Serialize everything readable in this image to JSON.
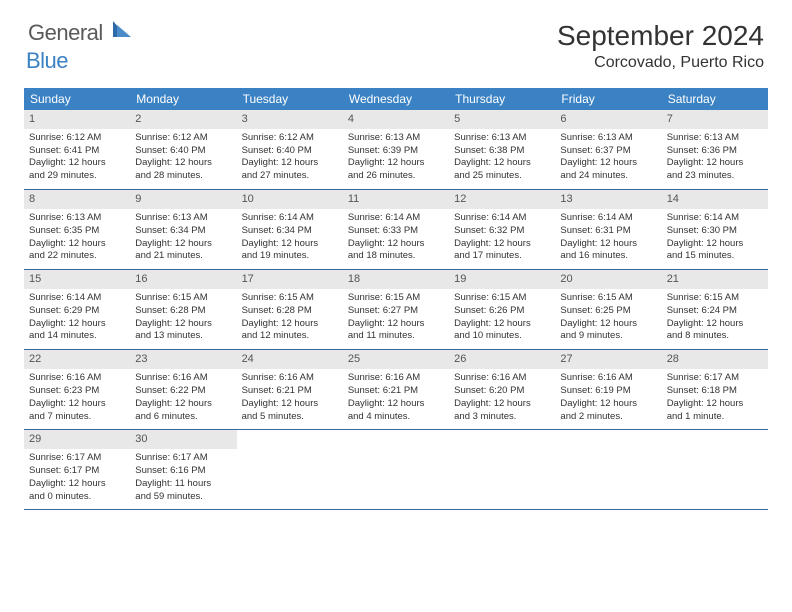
{
  "brand": {
    "part1": "General",
    "part2": "Blue"
  },
  "title": "September 2024",
  "location": "Corcovado, Puerto Rico",
  "colors": {
    "header_bg": "#3b82c4",
    "header_text": "#ffffff",
    "daynum_bg": "#e8e8e8",
    "row_border": "#3b6a9a",
    "text": "#333333"
  },
  "fonts": {
    "title_size": 28,
    "location_size": 16,
    "dayheader_size": 12,
    "daynum_size": 11,
    "body_size": 9.5
  },
  "day_names": [
    "Sunday",
    "Monday",
    "Tuesday",
    "Wednesday",
    "Thursday",
    "Friday",
    "Saturday"
  ],
  "weeks": [
    [
      {
        "n": "1",
        "sunrise": "Sunrise: 6:12 AM",
        "sunset": "Sunset: 6:41 PM",
        "dl1": "Daylight: 12 hours",
        "dl2": "and 29 minutes."
      },
      {
        "n": "2",
        "sunrise": "Sunrise: 6:12 AM",
        "sunset": "Sunset: 6:40 PM",
        "dl1": "Daylight: 12 hours",
        "dl2": "and 28 minutes."
      },
      {
        "n": "3",
        "sunrise": "Sunrise: 6:12 AM",
        "sunset": "Sunset: 6:40 PM",
        "dl1": "Daylight: 12 hours",
        "dl2": "and 27 minutes."
      },
      {
        "n": "4",
        "sunrise": "Sunrise: 6:13 AM",
        "sunset": "Sunset: 6:39 PM",
        "dl1": "Daylight: 12 hours",
        "dl2": "and 26 minutes."
      },
      {
        "n": "5",
        "sunrise": "Sunrise: 6:13 AM",
        "sunset": "Sunset: 6:38 PM",
        "dl1": "Daylight: 12 hours",
        "dl2": "and 25 minutes."
      },
      {
        "n": "6",
        "sunrise": "Sunrise: 6:13 AM",
        "sunset": "Sunset: 6:37 PM",
        "dl1": "Daylight: 12 hours",
        "dl2": "and 24 minutes."
      },
      {
        "n": "7",
        "sunrise": "Sunrise: 6:13 AM",
        "sunset": "Sunset: 6:36 PM",
        "dl1": "Daylight: 12 hours",
        "dl2": "and 23 minutes."
      }
    ],
    [
      {
        "n": "8",
        "sunrise": "Sunrise: 6:13 AM",
        "sunset": "Sunset: 6:35 PM",
        "dl1": "Daylight: 12 hours",
        "dl2": "and 22 minutes."
      },
      {
        "n": "9",
        "sunrise": "Sunrise: 6:13 AM",
        "sunset": "Sunset: 6:34 PM",
        "dl1": "Daylight: 12 hours",
        "dl2": "and 21 minutes."
      },
      {
        "n": "10",
        "sunrise": "Sunrise: 6:14 AM",
        "sunset": "Sunset: 6:34 PM",
        "dl1": "Daylight: 12 hours",
        "dl2": "and 19 minutes."
      },
      {
        "n": "11",
        "sunrise": "Sunrise: 6:14 AM",
        "sunset": "Sunset: 6:33 PM",
        "dl1": "Daylight: 12 hours",
        "dl2": "and 18 minutes."
      },
      {
        "n": "12",
        "sunrise": "Sunrise: 6:14 AM",
        "sunset": "Sunset: 6:32 PM",
        "dl1": "Daylight: 12 hours",
        "dl2": "and 17 minutes."
      },
      {
        "n": "13",
        "sunrise": "Sunrise: 6:14 AM",
        "sunset": "Sunset: 6:31 PM",
        "dl1": "Daylight: 12 hours",
        "dl2": "and 16 minutes."
      },
      {
        "n": "14",
        "sunrise": "Sunrise: 6:14 AM",
        "sunset": "Sunset: 6:30 PM",
        "dl1": "Daylight: 12 hours",
        "dl2": "and 15 minutes."
      }
    ],
    [
      {
        "n": "15",
        "sunrise": "Sunrise: 6:14 AM",
        "sunset": "Sunset: 6:29 PM",
        "dl1": "Daylight: 12 hours",
        "dl2": "and 14 minutes."
      },
      {
        "n": "16",
        "sunrise": "Sunrise: 6:15 AM",
        "sunset": "Sunset: 6:28 PM",
        "dl1": "Daylight: 12 hours",
        "dl2": "and 13 minutes."
      },
      {
        "n": "17",
        "sunrise": "Sunrise: 6:15 AM",
        "sunset": "Sunset: 6:28 PM",
        "dl1": "Daylight: 12 hours",
        "dl2": "and 12 minutes."
      },
      {
        "n": "18",
        "sunrise": "Sunrise: 6:15 AM",
        "sunset": "Sunset: 6:27 PM",
        "dl1": "Daylight: 12 hours",
        "dl2": "and 11 minutes."
      },
      {
        "n": "19",
        "sunrise": "Sunrise: 6:15 AM",
        "sunset": "Sunset: 6:26 PM",
        "dl1": "Daylight: 12 hours",
        "dl2": "and 10 minutes."
      },
      {
        "n": "20",
        "sunrise": "Sunrise: 6:15 AM",
        "sunset": "Sunset: 6:25 PM",
        "dl1": "Daylight: 12 hours",
        "dl2": "and 9 minutes."
      },
      {
        "n": "21",
        "sunrise": "Sunrise: 6:15 AM",
        "sunset": "Sunset: 6:24 PM",
        "dl1": "Daylight: 12 hours",
        "dl2": "and 8 minutes."
      }
    ],
    [
      {
        "n": "22",
        "sunrise": "Sunrise: 6:16 AM",
        "sunset": "Sunset: 6:23 PM",
        "dl1": "Daylight: 12 hours",
        "dl2": "and 7 minutes."
      },
      {
        "n": "23",
        "sunrise": "Sunrise: 6:16 AM",
        "sunset": "Sunset: 6:22 PM",
        "dl1": "Daylight: 12 hours",
        "dl2": "and 6 minutes."
      },
      {
        "n": "24",
        "sunrise": "Sunrise: 6:16 AM",
        "sunset": "Sunset: 6:21 PM",
        "dl1": "Daylight: 12 hours",
        "dl2": "and 5 minutes."
      },
      {
        "n": "25",
        "sunrise": "Sunrise: 6:16 AM",
        "sunset": "Sunset: 6:21 PM",
        "dl1": "Daylight: 12 hours",
        "dl2": "and 4 minutes."
      },
      {
        "n": "26",
        "sunrise": "Sunrise: 6:16 AM",
        "sunset": "Sunset: 6:20 PM",
        "dl1": "Daylight: 12 hours",
        "dl2": "and 3 minutes."
      },
      {
        "n": "27",
        "sunrise": "Sunrise: 6:16 AM",
        "sunset": "Sunset: 6:19 PM",
        "dl1": "Daylight: 12 hours",
        "dl2": "and 2 minutes."
      },
      {
        "n": "28",
        "sunrise": "Sunrise: 6:17 AM",
        "sunset": "Sunset: 6:18 PM",
        "dl1": "Daylight: 12 hours",
        "dl2": "and 1 minute."
      }
    ],
    [
      {
        "n": "29",
        "sunrise": "Sunrise: 6:17 AM",
        "sunset": "Sunset: 6:17 PM",
        "dl1": "Daylight: 12 hours",
        "dl2": "and 0 minutes."
      },
      {
        "n": "30",
        "sunrise": "Sunrise: 6:17 AM",
        "sunset": "Sunset: 6:16 PM",
        "dl1": "Daylight: 11 hours",
        "dl2": "and 59 minutes."
      },
      null,
      null,
      null,
      null,
      null
    ]
  ]
}
